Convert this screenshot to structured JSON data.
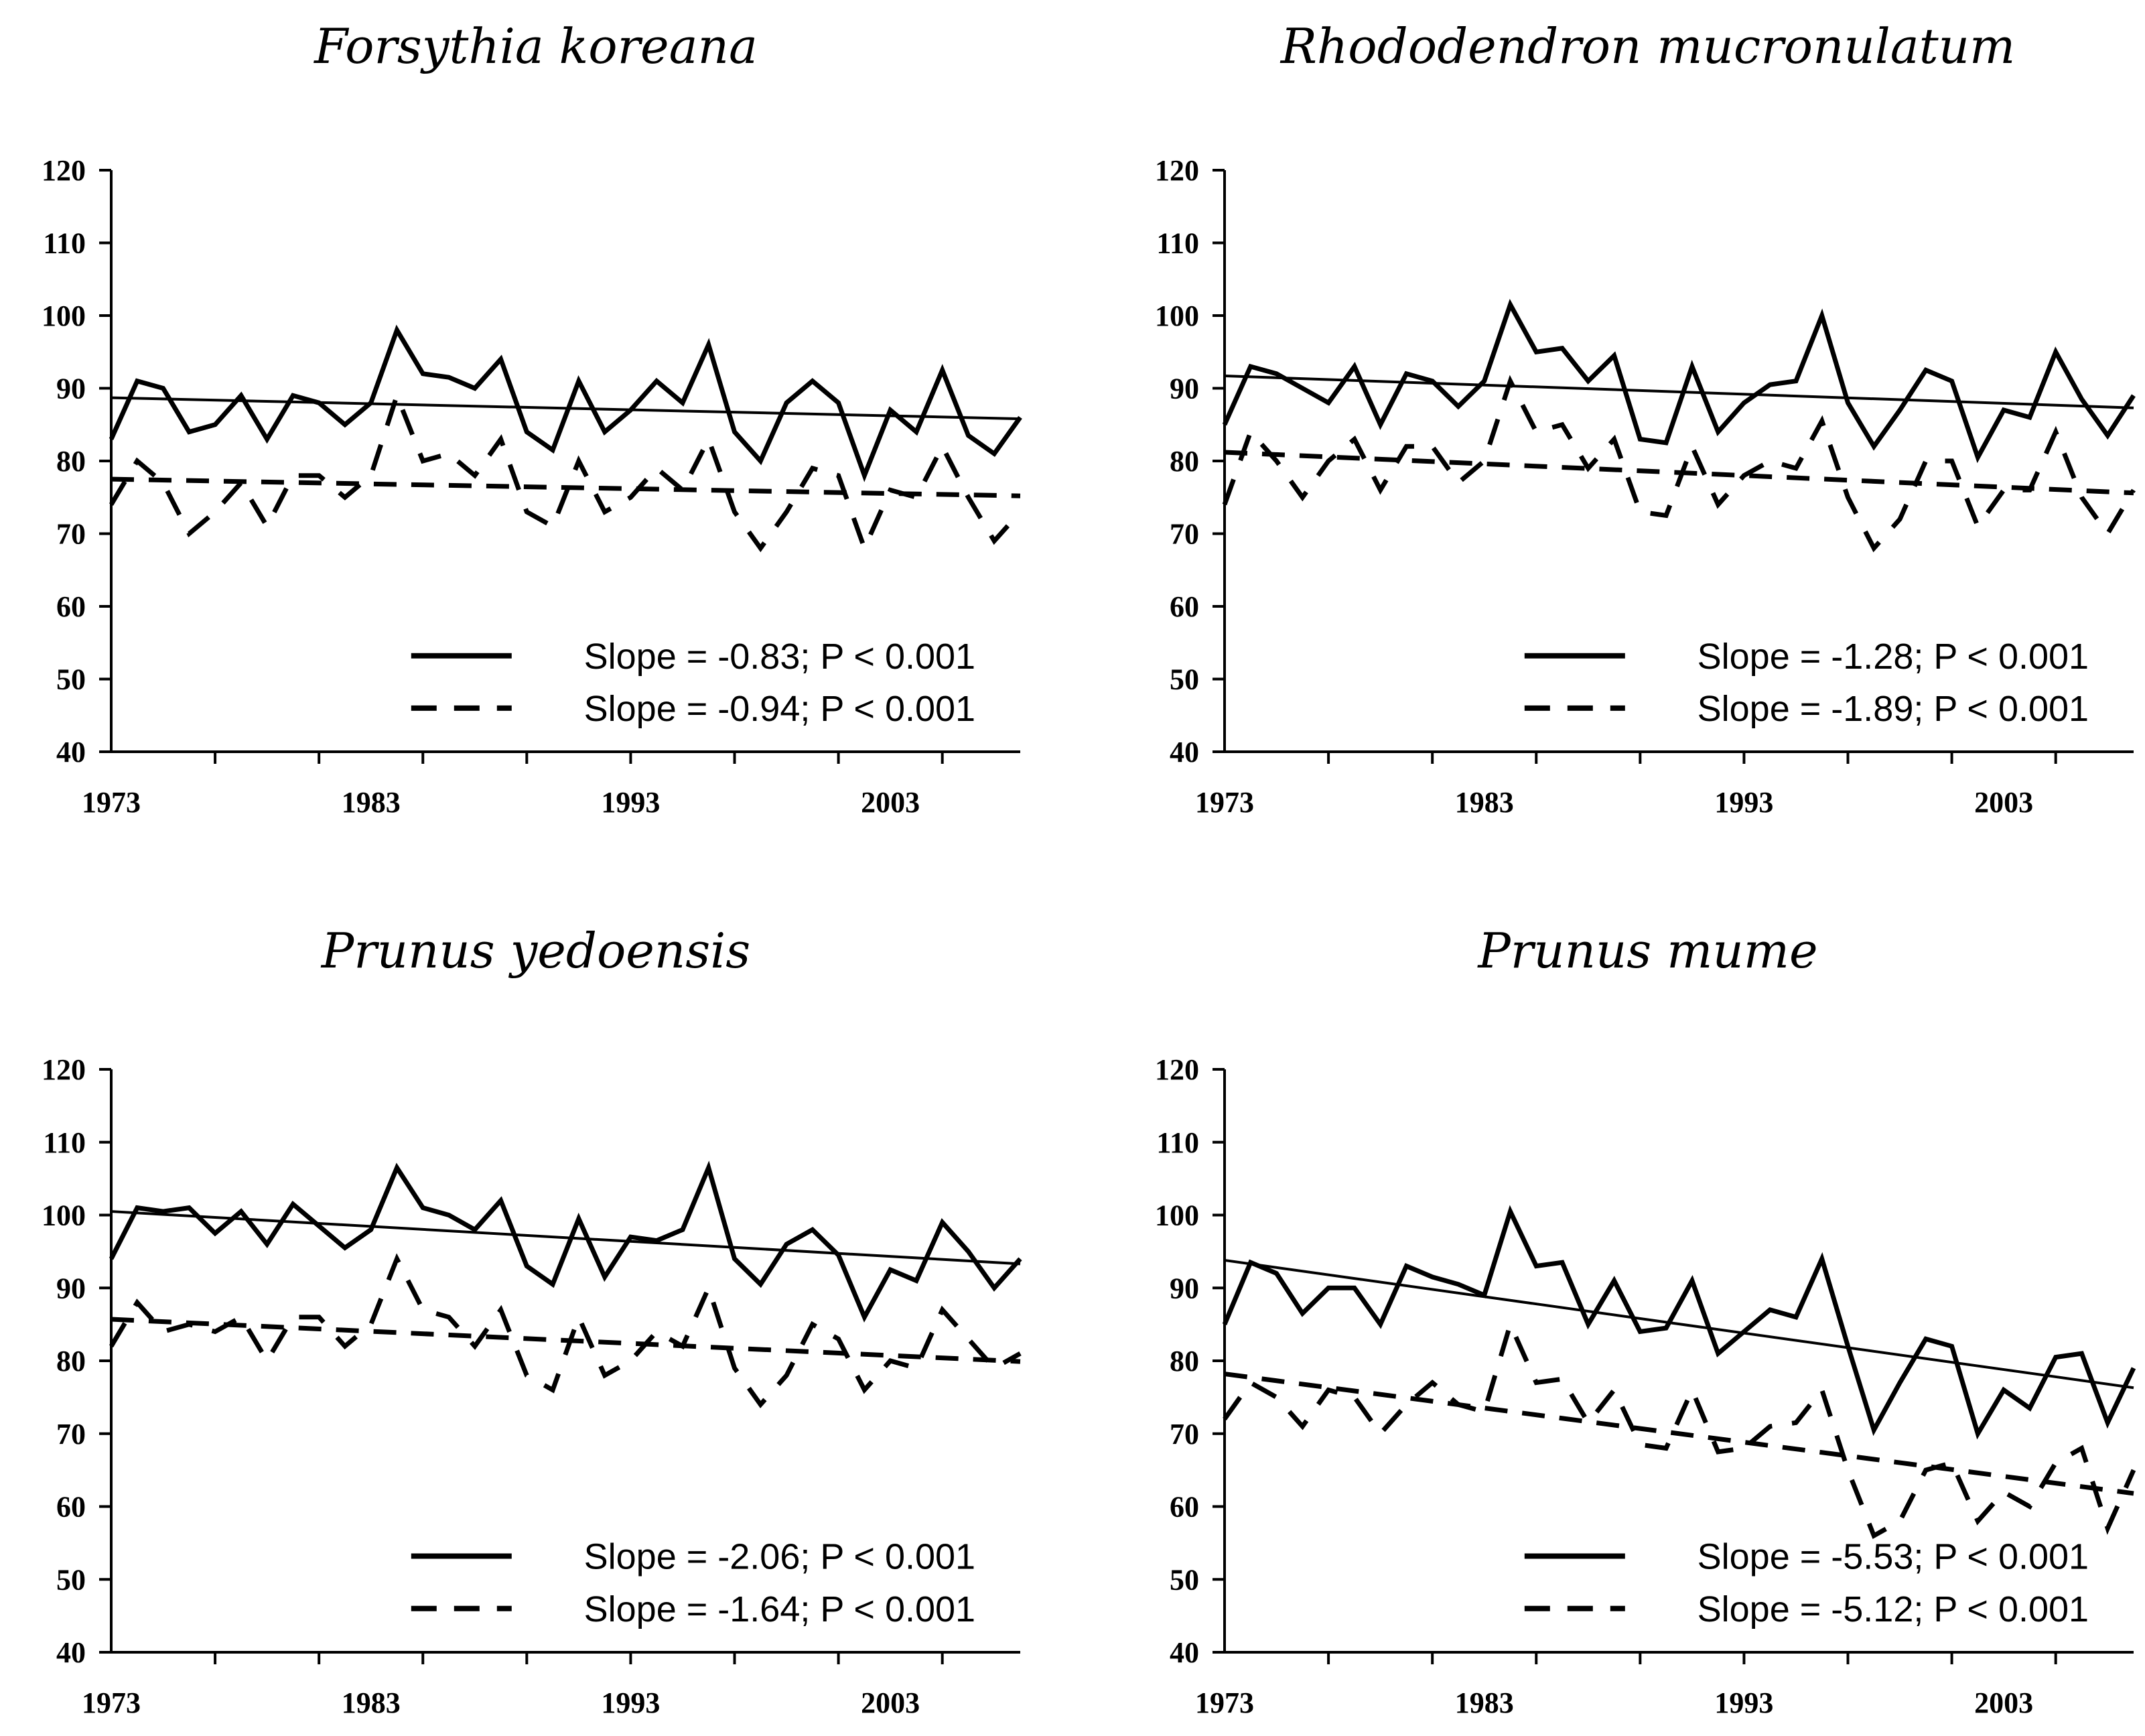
{
  "chart_data": [
    {
      "type": "line",
      "title": "Forsythia koreana",
      "xlabel": "",
      "ylabel": "",
      "xlim": [
        1973,
        2008
      ],
      "ylim": [
        40,
        120
      ],
      "yticks": [
        "40",
        "50",
        "60",
        "70",
        "80",
        "90",
        "100",
        "110",
        "120"
      ],
      "xticks": [
        "1973",
        "1983",
        "1993",
        "2003"
      ],
      "x": [
        1973,
        1974,
        1975,
        1976,
        1977,
        1978,
        1979,
        1980,
        1981,
        1982,
        1983,
        1984,
        1985,
        1986,
        1987,
        1988,
        1989,
        1990,
        1991,
        1992,
        1993,
        1994,
        1995,
        1996,
        1997,
        1998,
        1999,
        2000,
        2001,
        2002,
        2003,
        2004,
        2005,
        2006,
        2007,
        2008
      ],
      "series": [
        {
          "name": "solid",
          "style": "solid",
          "values": [
            83,
            91,
            90,
            84,
            85,
            89,
            83,
            89,
            88,
            85,
            88,
            98,
            92,
            91.5,
            90,
            94,
            84,
            81.5,
            91,
            84,
            87,
            91,
            88,
            96,
            84,
            80,
            88,
            91,
            88,
            78,
            87,
            84,
            92.5,
            83.5,
            81,
            86
          ]
        },
        {
          "name": "dashed",
          "style": "dashed",
          "values": [
            74,
            80,
            77,
            70,
            73,
            77,
            71,
            78,
            78,
            75,
            78,
            89,
            80,
            81,
            78,
            83,
            73,
            71,
            80,
            73,
            75,
            79,
            76,
            83,
            73,
            68,
            73,
            79,
            78,
            68,
            76,
            75,
            82,
            75,
            69,
            73
          ]
        }
      ],
      "trend": [
        {
          "style": "solid",
          "y_start": 88.7,
          "y_end": 85.8
        },
        {
          "style": "dashed",
          "y_start": 77.5,
          "y_end": 75.2
        }
      ],
      "legend": {
        "position": "bottom-right",
        "entries": [
          "Slope = -0.83; P < 0.001",
          "Slope = -0.94; P < 0.001"
        ]
      }
    },
    {
      "type": "line",
      "title": "Rhododendron mucronulatum",
      "xlabel": "",
      "ylabel": "",
      "xlim": [
        1973,
        2008
      ],
      "ylim": [
        40,
        120
      ],
      "yticks": [
        "40",
        "50",
        "60",
        "70",
        "80",
        "90",
        "100",
        "110",
        "120"
      ],
      "xticks": [
        "1973",
        "1983",
        "1993",
        "2003"
      ],
      "x": [
        1973,
        1974,
        1975,
        1976,
        1977,
        1978,
        1979,
        1980,
        1981,
        1982,
        1983,
        1984,
        1985,
        1986,
        1987,
        1988,
        1989,
        1990,
        1991,
        1992,
        1993,
        1994,
        1995,
        1996,
        1997,
        1998,
        1999,
        2000,
        2001,
        2002,
        2003,
        2004,
        2005,
        2006,
        2007,
        2008
      ],
      "series": [
        {
          "name": "solid",
          "style": "solid",
          "values": [
            85,
            93,
            92,
            90,
            88,
            93,
            85,
            92,
            91,
            87.5,
            91,
            101.5,
            95,
            95.5,
            91,
            94.5,
            83,
            82.5,
            93,
            84,
            88,
            90.5,
            91,
            100,
            88,
            82,
            87,
            92.5,
            91,
            80.5,
            87,
            86,
            95,
            88.5,
            83.5,
            89
          ]
        },
        {
          "name": "dashed",
          "style": "dashed",
          "values": [
            74,
            84,
            80,
            75,
            80,
            83,
            76,
            82,
            82,
            77,
            80,
            91,
            84,
            85,
            79,
            83,
            73,
            72.5,
            82,
            74,
            78,
            80,
            79,
            85.5,
            75,
            68,
            72,
            80,
            80,
            71,
            76,
            76,
            84,
            75,
            70,
            76
          ]
        }
      ],
      "trend": [
        {
          "style": "solid",
          "y_start": 91.7,
          "y_end": 87.3
        },
        {
          "style": "dashed",
          "y_start": 81.2,
          "y_end": 75.6
        }
      ],
      "legend": {
        "position": "bottom-right",
        "entries": [
          "Slope = -1.28; P < 0.001",
          "Slope = -1.89; P < 0.001"
        ]
      }
    },
    {
      "type": "line",
      "title": "Prunus yedoensis",
      "xlabel": "",
      "ylabel": "",
      "xlim": [
        1973,
        2008
      ],
      "ylim": [
        40,
        120
      ],
      "yticks": [
        "40",
        "50",
        "60",
        "70",
        "80",
        "90",
        "100",
        "110",
        "120"
      ],
      "xticks": [
        "1973",
        "1983",
        "1993",
        "2003"
      ],
      "x": [
        1973,
        1974,
        1975,
        1976,
        1977,
        1978,
        1979,
        1980,
        1981,
        1982,
        1983,
        1984,
        1985,
        1986,
        1987,
        1988,
        1989,
        1990,
        1991,
        1992,
        1993,
        1994,
        1995,
        1996,
        1997,
        1998,
        1999,
        2000,
        2001,
        2002,
        2003,
        2004,
        2005,
        2006,
        2007,
        2008
      ],
      "series": [
        {
          "name": "solid",
          "style": "solid",
          "values": [
            94,
            101,
            100.5,
            101,
            97.5,
            100.5,
            96,
            101.5,
            98.5,
            95.5,
            98,
            106.5,
            101,
            100,
            98,
            102,
            93,
            90.5,
            99.5,
            91.5,
            97,
            96.5,
            98,
            106.5,
            94,
            90.5,
            96,
            98,
            94.5,
            86,
            92.5,
            91,
            99,
            95,
            90,
            94
          ]
        },
        {
          "name": "dashed",
          "style": "dashed",
          "values": [
            82,
            88,
            84,
            85,
            84,
            86,
            80,
            86,
            86,
            82,
            85,
            94,
            87,
            86,
            82,
            87,
            78,
            76,
            86,
            78,
            80,
            84,
            82,
            90,
            79,
            74,
            78,
            85,
            83,
            76,
            80,
            79,
            87,
            83,
            79,
            81
          ]
        }
      ],
      "trend": [
        {
          "style": "solid",
          "y_start": 100.5,
          "y_end": 93.3
        },
        {
          "style": "dashed",
          "y_start": 85.7,
          "y_end": 79.9
        }
      ],
      "legend": {
        "position": "bottom-right",
        "entries": [
          "Slope = -2.06; P < 0.001",
          "Slope = -1.64; P < 0.001"
        ]
      }
    },
    {
      "type": "line",
      "title": "Prunus mume",
      "xlabel": "",
      "ylabel": "",
      "xlim": [
        1973,
        2008
      ],
      "ylim": [
        40,
        120
      ],
      "yticks": [
        "40",
        "50",
        "60",
        "70",
        "80",
        "90",
        "100",
        "110",
        "120"
      ],
      "xticks": [
        "1973",
        "1983",
        "1993",
        "2003"
      ],
      "x": [
        1973,
        1974,
        1975,
        1976,
        1977,
        1978,
        1979,
        1980,
        1981,
        1982,
        1983,
        1984,
        1985,
        1986,
        1987,
        1988,
        1989,
        1990,
        1991,
        1992,
        1993,
        1994,
        1995,
        1996,
        1997,
        1998,
        1999,
        2000,
        2001,
        2002,
        2003,
        2004,
        2005,
        2006,
        2007,
        2008
      ],
      "series": [
        {
          "name": "solid",
          "style": "solid",
          "values": [
            85,
            93.5,
            92,
            86.5,
            90,
            90,
            85,
            93,
            91.5,
            90.5,
            89,
            100.5,
            93,
            93.5,
            85,
            91,
            84,
            84.5,
            91,
            81,
            84,
            87,
            86,
            94,
            82,
            70.5,
            77,
            83,
            82,
            70,
            76,
            73.5,
            80.5,
            81,
            71.5,
            79
          ]
        },
        {
          "name": "dashed",
          "style": "dashed",
          "values": [
            72,
            77,
            75,
            71,
            76,
            75,
            70,
            74,
            77,
            74,
            73,
            85,
            77,
            77.5,
            71.5,
            76,
            68.5,
            68,
            76,
            67.5,
            68,
            71,
            71.5,
            76,
            65,
            56,
            58,
            65,
            66,
            58,
            62,
            60,
            66,
            68,
            57,
            65
          ]
        }
      ],
      "trend": [
        {
          "style": "solid",
          "y_start": 93.8,
          "y_end": 76.3
        },
        {
          "style": "dashed",
          "y_start": 78.2,
          "y_end": 61.8
        }
      ],
      "legend": {
        "position": "bottom-right",
        "entries": [
          "Slope = -5.53; P < 0.001",
          "Slope = -5.12; P < 0.001"
        ]
      }
    }
  ]
}
